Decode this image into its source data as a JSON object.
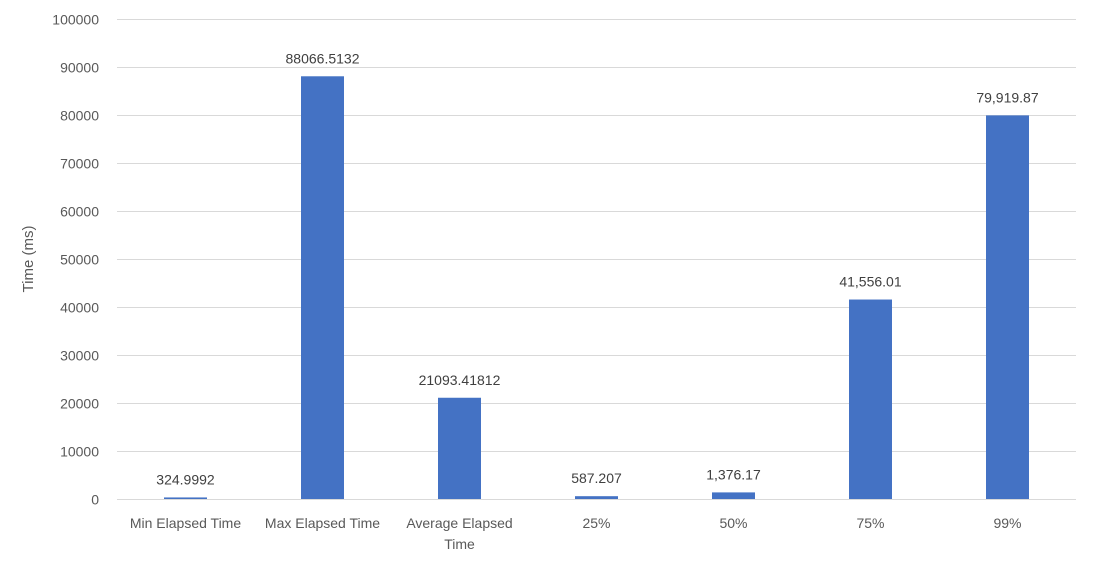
{
  "colors": {
    "bar": "#4472C4",
    "gridline": "#d9d9d9",
    "axis_text": "#595959",
    "label_text": "#404040",
    "background": "#ffffff"
  },
  "chart_data": {
    "type": "bar",
    "title": "",
    "xlabel": "",
    "ylabel": "Time (ms)",
    "ylim": [
      0,
      100000
    ],
    "yticks": [
      0,
      10000,
      20000,
      30000,
      40000,
      50000,
      60000,
      70000,
      80000,
      90000,
      100000
    ],
    "grid": true,
    "legend": "none",
    "categories": [
      [
        "Min Elapsed Time"
      ],
      [
        "Max Elapsed Time"
      ],
      [
        "Average Elapsed",
        "Time"
      ],
      [
        "25%"
      ],
      [
        "50%"
      ],
      [
        "75%"
      ],
      [
        "99%"
      ]
    ],
    "values": [
      324.9992,
      88066.5132,
      21093.41812,
      587.207,
      1376.17,
      41556.01,
      79919.87
    ],
    "data_labels": [
      "324.9992",
      "88066.5132",
      "21093.41812",
      "587.207",
      "1,376.17",
      "41,556.01",
      "79,919.87"
    ]
  }
}
